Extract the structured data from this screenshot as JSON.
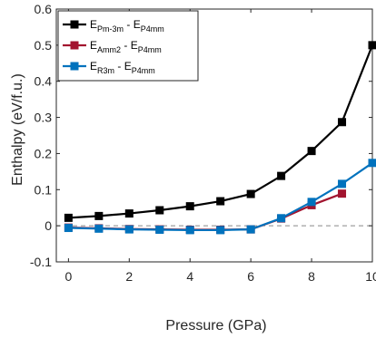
{
  "chart_data": {
    "type": "line",
    "xlabel": "Pressure (GPa)",
    "ylabel": "Enthalpy (eV/f.u.)",
    "xlim": [
      -0.4,
      10
    ],
    "ylim": [
      -0.1,
      0.6
    ],
    "xticks": [
      0,
      2,
      4,
      6,
      8,
      10
    ],
    "yticks": [
      -0.1,
      0,
      0.1,
      0.2,
      0.3,
      0.4,
      0.5,
      0.6
    ],
    "xtick_labels": [
      "0",
      "2",
      "4",
      "6",
      "8",
      "10"
    ],
    "ytick_labels": [
      "-0.1",
      "0",
      "0.1",
      "0.2",
      "0.3",
      "0.4",
      "0.5",
      "0.6"
    ],
    "grid": false,
    "legend_position": "top-left",
    "reference_line": {
      "y": 0,
      "style": "dashed",
      "color": "#888888"
    },
    "series": [
      {
        "name": "E_{Pm-3m} - E_{P4mm}",
        "legend": {
          "e1": "E",
          "sub1": "Pm-3m",
          "sep": " - ",
          "e2": "E",
          "sub2": "P4mm"
        },
        "color": "#000000",
        "marker": "square",
        "x": [
          0,
          1,
          2,
          3,
          4,
          5,
          6,
          7,
          8,
          9,
          10
        ],
        "y": [
          0.022,
          0.027,
          0.034,
          0.043,
          0.054,
          0.068,
          0.088,
          0.138,
          0.207,
          0.287,
          0.5
        ]
      },
      {
        "name": "E_{Amm2} - E_{P4mm}",
        "legend": {
          "e1": "E",
          "sub1": "Amm2",
          "sep": " - ",
          "e2": "E",
          "sub2": "P4mm"
        },
        "color": "#a2142f",
        "marker": "square",
        "x": [
          0,
          1,
          2,
          3,
          4,
          5,
          6,
          7,
          8,
          9
        ],
        "y": [
          -0.005,
          -0.007,
          -0.009,
          -0.01,
          -0.011,
          -0.011,
          -0.01,
          0.02,
          0.057,
          0.089
        ]
      },
      {
        "name": "E_{R3m} - E_{P4mm}",
        "legend": {
          "e1": "E",
          "sub1": "R3m",
          "sep": " - ",
          "e2": "E",
          "sub2": "P4mm"
        },
        "color": "#0072bd",
        "marker": "square",
        "x": [
          0,
          1,
          2,
          3,
          4,
          5,
          6,
          7,
          8,
          9,
          10
        ],
        "y": [
          -0.006,
          -0.008,
          -0.01,
          -0.011,
          -0.012,
          -0.012,
          -0.01,
          0.021,
          0.066,
          0.116,
          0.174
        ]
      }
    ]
  }
}
